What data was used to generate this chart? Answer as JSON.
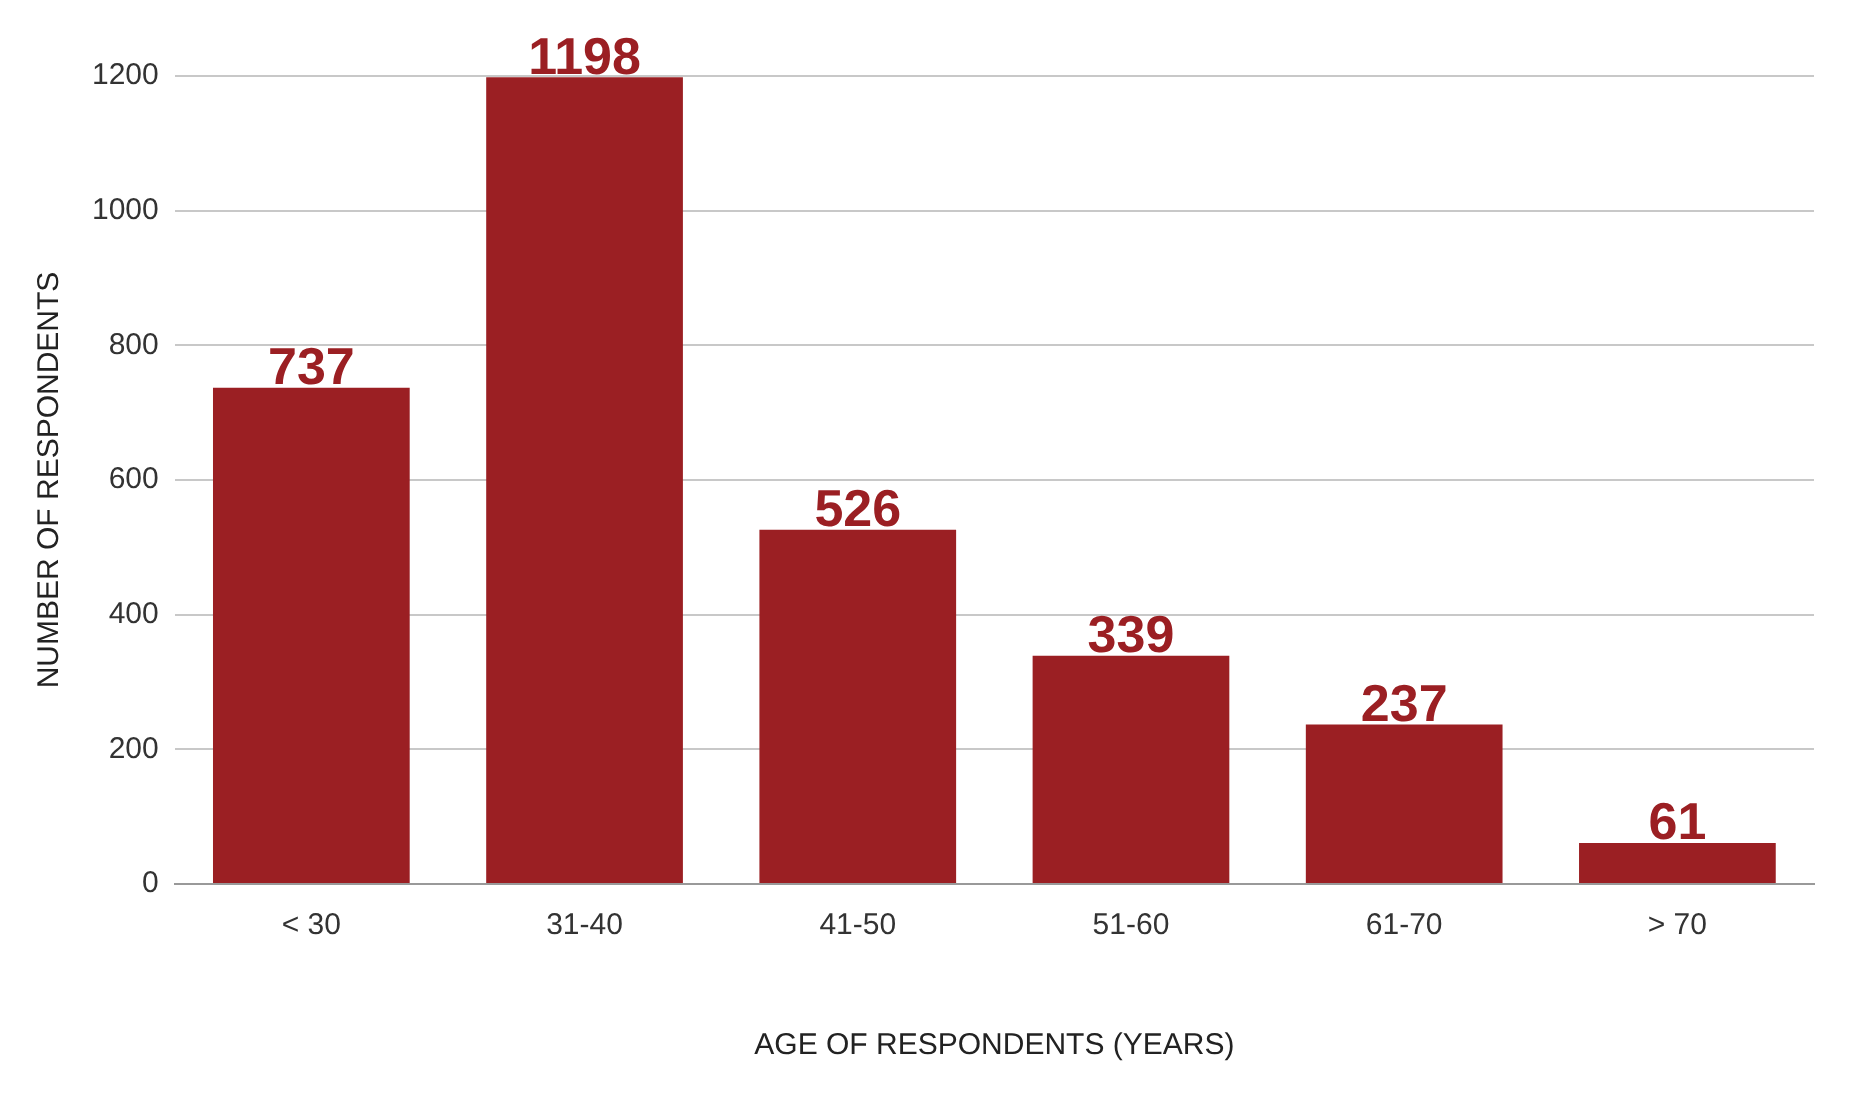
{
  "chart_data": {
    "type": "bar",
    "xlabel": "AGE OF RESPONDENTS (YEARS)",
    "ylabel": "NUMBER OF RESPONDENTS",
    "categories": [
      "< 30",
      "31-40",
      "41-50",
      "51-60",
      "61-70",
      "> 70"
    ],
    "values": [
      737,
      1198,
      526,
      339,
      237,
      61
    ],
    "color": "#9b1f23",
    "ylim": [
      0,
      1200
    ],
    "yticks": [
      0,
      200,
      400,
      600,
      800,
      1000,
      1200
    ],
    "grid": "y",
    "data_labels": true,
    "legend": false
  }
}
